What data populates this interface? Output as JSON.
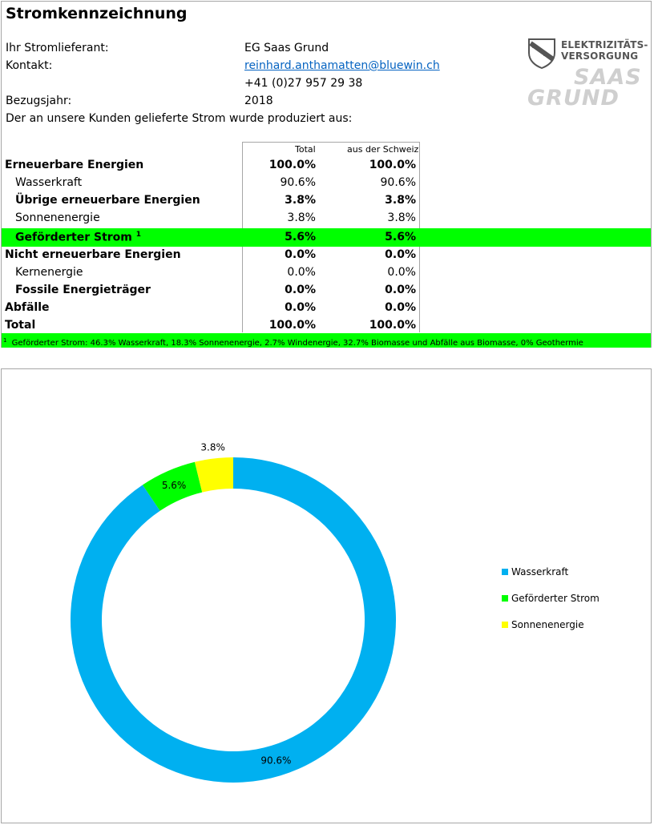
{
  "header": {
    "title": "Stromkennzeichnung",
    "supplier_label": "Ihr Stromlieferant:",
    "supplier_value": "EG Saas Grund",
    "contact_label": "Kontakt:",
    "contact_email": "reinhard.anthamatten@bluewin.ch",
    "contact_phone": "+41 (0)27 957 29 38",
    "year_label": "Bezugsjahr:",
    "year_value": "2018",
    "intro": "Der an unsere Kunden gelieferte Strom wurde produziert aus:"
  },
  "logo": {
    "line1": "ELEKTRIZITÄTS-",
    "line2": "VERSORGUNG",
    "line3": "SAAS",
    "line4": "GRUND"
  },
  "table": {
    "col_total": "Total",
    "col_swiss": "aus der Schweiz",
    "rows": [
      {
        "name": "Erneuerbare Energien",
        "total": "100.0%",
        "swiss": "100.0%"
      },
      {
        "name": "Wasserkraft",
        "total": "90.6%",
        "swiss": "90.6%"
      },
      {
        "name": "Übrige erneuerbare Energien",
        "total": "3.8%",
        "swiss": "3.8%"
      },
      {
        "name": "Sonnenenergie",
        "total": "3.8%",
        "swiss": "3.8%"
      },
      {
        "name": "Geförderter Strom",
        "sup": "1",
        "total": "5.6%",
        "swiss": "5.6%"
      },
      {
        "name": "Nicht erneuerbare Energien",
        "total": "0.0%",
        "swiss": "0.0%"
      },
      {
        "name": "Kernenergie",
        "total": "0.0%",
        "swiss": "0.0%"
      },
      {
        "name": "Fossile Energieträger",
        "total": "0.0%",
        "swiss": "0.0%"
      },
      {
        "name": "Abfälle",
        "total": "0.0%",
        "swiss": "0.0%"
      },
      {
        "name": "Total",
        "total": "100.0%",
        "swiss": "100.0%"
      }
    ],
    "footnote_mark": "1",
    "footnote": "Geförderter Strom: 46.3% Wasserkraft, 18.3% Sonnenenergie, 2.7% Windenergie, 32.7% Biomasse und Abfälle aus Biomasse,  0% Geothermie"
  },
  "colors": {
    "highlight": "#00ff00",
    "wasserkraft": "#00b0f0",
    "gefoerdert": "#00ff00",
    "sonne": "#ffff00",
    "link": "#0563c1"
  },
  "chart_data": {
    "type": "pie",
    "style": "donut",
    "series": [
      {
        "name": "Wasserkraft",
        "value": 90.6,
        "label": "90.6%",
        "color": "#00b0f0"
      },
      {
        "name": "Geförderter Strom",
        "value": 5.6,
        "label": "5.6%",
        "color": "#00ff00"
      },
      {
        "name": "Sonnenenergie",
        "value": 3.8,
        "label": "3.8%",
        "color": "#ffff00"
      }
    ],
    "legend_position": "right"
  }
}
